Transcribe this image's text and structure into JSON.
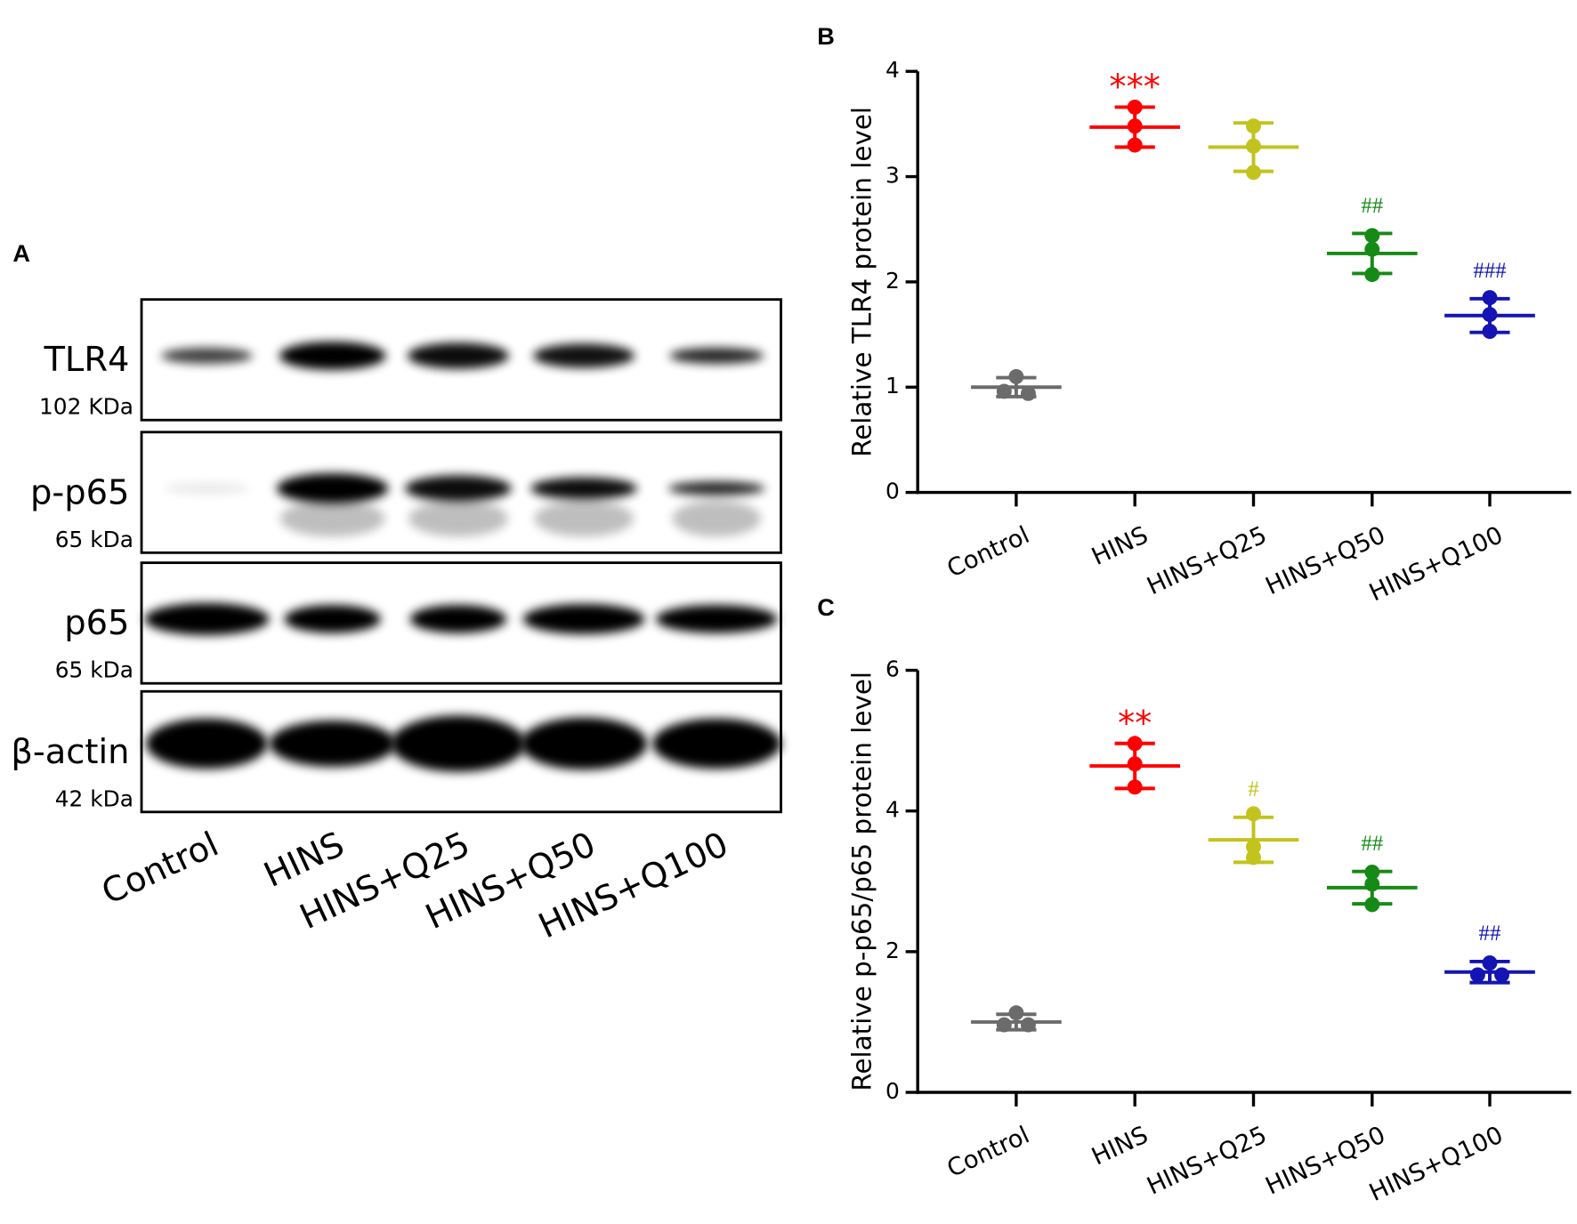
{
  "panel_a": {
    "label": "A",
    "proteins": [
      {
        "name": "TLR4",
        "size": "102 KDa"
      },
      {
        "name": "p-p65",
        "size": "65 kDa"
      },
      {
        "name": "p65",
        "size": "65 kDa"
      },
      {
        "name": "β-actin",
        "size": "42 kDa"
      }
    ],
    "lanes": [
      "Control",
      "HINS",
      "HINS+Q25",
      "HINS+Q50",
      "HINS+Q100"
    ]
  },
  "chart_data": [
    {
      "type": "dot_plot",
      "panel_label": "B",
      "y_label": "Relative TLR4 protein level",
      "categories": [
        "Control",
        "HINS",
        "HINS+Q25",
        "HINS+Q50",
        "HINS+Q100"
      ],
      "colors": [
        "#6b6b6b",
        "#ff0000",
        "#c3c31e",
        "#168a16",
        "#1414b4"
      ],
      "points": [
        [
          1.1,
          0.94,
          0.96
        ],
        [
          3.66,
          3.48,
          3.3
        ],
        [
          3.48,
          3.29,
          3.04
        ],
        [
          2.44,
          2.31,
          2.07
        ],
        [
          1.85,
          1.69,
          1.53
        ]
      ],
      "means": [
        1.0,
        3.47,
        3.28,
        2.27,
        1.68
      ],
      "errors": [
        0.09,
        0.19,
        0.23,
        0.19,
        0.16
      ],
      "annotations": [
        null,
        "***",
        null,
        "##",
        "###"
      ],
      "ylim": [
        0,
        4
      ],
      "yticks": [
        0,
        1,
        2,
        3,
        4
      ]
    },
    {
      "type": "dot_plot",
      "panel_label": "C",
      "y_label": "Relative p-p65/p65 protein level",
      "categories": [
        "Control",
        "HINS",
        "HINS+Q25",
        "HINS+Q50",
        "HINS+Q100"
      ],
      "colors": [
        "#6b6b6b",
        "#ff0000",
        "#c3c31e",
        "#168a16",
        "#1414b4"
      ],
      "points": [
        [
          1.13,
          0.96,
          0.96
        ],
        [
          4.96,
          4.67,
          4.34
        ],
        [
          3.96,
          3.49,
          3.34
        ],
        [
          3.13,
          2.96,
          2.67
        ],
        [
          1.84,
          1.67,
          1.67
        ]
      ],
      "means": [
        1.0,
        4.64,
        3.59,
        2.91,
        1.71
      ],
      "errors": [
        0.11,
        0.32,
        0.32,
        0.23,
        0.15
      ],
      "annotations": [
        null,
        "**",
        "#",
        "##",
        "##"
      ],
      "ylim": [
        0,
        6
      ],
      "yticks": [
        0,
        2,
        4,
        6
      ]
    }
  ]
}
